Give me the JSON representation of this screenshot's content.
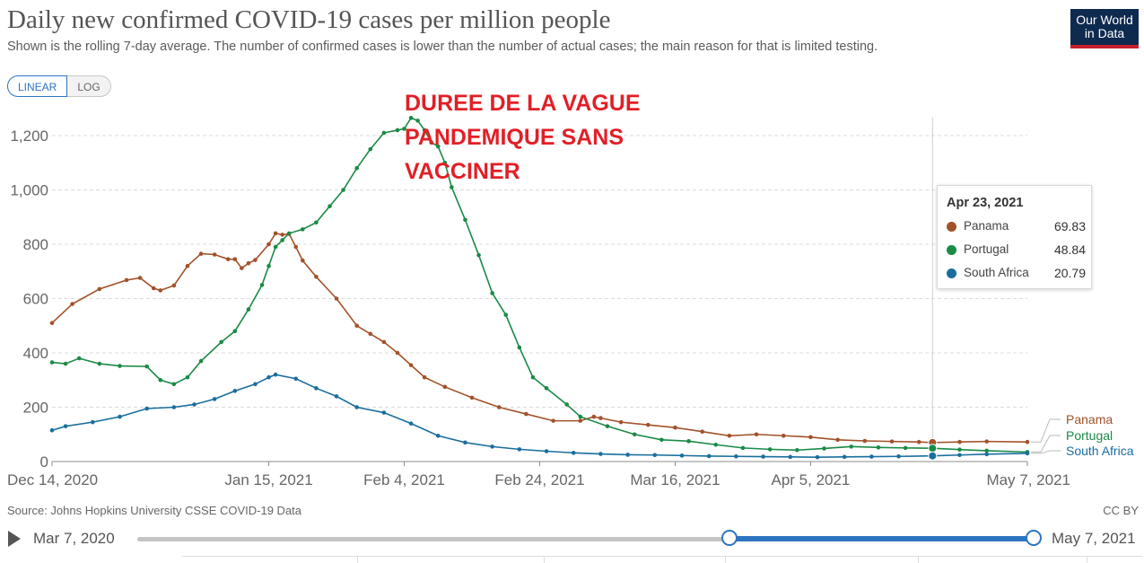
{
  "title": "Daily new confirmed COVID-19 cases per million people",
  "subtitle": "Shown is the rolling 7-day average. The number of confirmed cases is lower than the number of actual cases; the main reason for that is limited testing.",
  "logo": {
    "line1": "Our World",
    "line2": "in Data"
  },
  "scale_toggle": {
    "linear": "LINEAR",
    "log": "LOG",
    "selected": "LINEAR"
  },
  "annotation": {
    "line1": "DUREE DE LA VAGUE",
    "line2": "PANDEMIQUE SANS",
    "line3": "VACCINER",
    "color": "#e21f26"
  },
  "tooltip": {
    "date": "Apr 23, 2021",
    "rows": [
      {
        "name": "Panama",
        "value": "69.83",
        "color": "#a2522a"
      },
      {
        "name": "Portugal",
        "value": "48.84",
        "color": "#1a8a47"
      },
      {
        "name": "South Africa",
        "value": "20.79",
        "color": "#1a6e9e"
      }
    ]
  },
  "footer": {
    "source": "Source: Johns Hopkins University CSSE COVID-19 Data",
    "license": "CC BY"
  },
  "timeline": {
    "start_label": "Mar 7, 2020",
    "end_label": "May 7, 2021"
  },
  "chart_data": {
    "type": "line",
    "title": "Daily new confirmed COVID-19 cases per million people",
    "x_ticks": [
      "Dec 14, 2020",
      "Jan 15, 2021",
      "Feb 4, 2021",
      "Feb 24, 2021",
      "Mar 16, 2021",
      "Apr 5, 2021",
      "May 7, 2021"
    ],
    "y_ticks": [
      "0",
      "200",
      "400",
      "600",
      "800",
      "1,000",
      "1,200"
    ],
    "ylim": [
      0,
      1270
    ],
    "grid": "horizontal dashed",
    "series": [
      {
        "name": "Panama",
        "color": "#a2522a",
        "points": [
          [
            "2020-12-14",
            510
          ],
          [
            "2020-12-17",
            580
          ],
          [
            "2020-12-21",
            635
          ],
          [
            "2020-12-25",
            668
          ],
          [
            "2020-12-27",
            676
          ],
          [
            "2020-12-29",
            638
          ],
          [
            "2020-12-30",
            630
          ],
          [
            "2021-01-01",
            648
          ],
          [
            "2021-01-03",
            720
          ],
          [
            "2021-01-05",
            765
          ],
          [
            "2021-01-07",
            762
          ],
          [
            "2021-01-09",
            745
          ],
          [
            "2021-01-10",
            745
          ],
          [
            "2021-01-11",
            712
          ],
          [
            "2021-01-12",
            730
          ],
          [
            "2021-01-13",
            742
          ],
          [
            "2021-01-15",
            800
          ],
          [
            "2021-01-16",
            840
          ],
          [
            "2021-01-17",
            835
          ],
          [
            "2021-01-18",
            838
          ],
          [
            "2021-01-19",
            790
          ],
          [
            "2021-01-20",
            740
          ],
          [
            "2021-01-22",
            680
          ],
          [
            "2021-01-25",
            600
          ],
          [
            "2021-01-28",
            500
          ],
          [
            "2021-01-30",
            470
          ],
          [
            "2021-02-01",
            440
          ],
          [
            "2021-02-03",
            400
          ],
          [
            "2021-02-05",
            355
          ],
          [
            "2021-02-07",
            310
          ],
          [
            "2021-02-10",
            275
          ],
          [
            "2021-02-14",
            235
          ],
          [
            "2021-02-18",
            200
          ],
          [
            "2021-02-22",
            175
          ],
          [
            "2021-02-26",
            150
          ],
          [
            "2021-03-02",
            150
          ],
          [
            "2021-03-04",
            165
          ],
          [
            "2021-03-05",
            160
          ],
          [
            "2021-03-08",
            145
          ],
          [
            "2021-03-12",
            135
          ],
          [
            "2021-03-16",
            125
          ],
          [
            "2021-03-20",
            110
          ],
          [
            "2021-03-24",
            95
          ],
          [
            "2021-03-28",
            100
          ],
          [
            "2021-04-01",
            95
          ],
          [
            "2021-04-05",
            90
          ],
          [
            "2021-04-09",
            80
          ],
          [
            "2021-04-13",
            76
          ],
          [
            "2021-04-17",
            74
          ],
          [
            "2021-04-21",
            72
          ],
          [
            "2021-04-23",
            69.83
          ],
          [
            "2021-04-27",
            72
          ],
          [
            "2021-05-01",
            74
          ],
          [
            "2021-05-07",
            72
          ]
        ]
      },
      {
        "name": "Portugal",
        "color": "#1a8a47",
        "points": [
          [
            "2020-12-14",
            365
          ],
          [
            "2020-12-16",
            360
          ],
          [
            "2020-12-18",
            380
          ],
          [
            "2020-12-21",
            360
          ],
          [
            "2020-12-24",
            352
          ],
          [
            "2020-12-28",
            350
          ],
          [
            "2020-12-30",
            300
          ],
          [
            "2021-01-01",
            285
          ],
          [
            "2021-01-03",
            310
          ],
          [
            "2021-01-05",
            370
          ],
          [
            "2021-01-08",
            440
          ],
          [
            "2021-01-10",
            480
          ],
          [
            "2021-01-12",
            560
          ],
          [
            "2021-01-14",
            650
          ],
          [
            "2021-01-15",
            720
          ],
          [
            "2021-01-16",
            790
          ],
          [
            "2021-01-17",
            815
          ],
          [
            "2021-01-18",
            840
          ],
          [
            "2021-01-20",
            855
          ],
          [
            "2021-01-22",
            880
          ],
          [
            "2021-01-24",
            940
          ],
          [
            "2021-01-26",
            1000
          ],
          [
            "2021-01-28",
            1080
          ],
          [
            "2021-01-30",
            1150
          ],
          [
            "2021-02-01",
            1210
          ],
          [
            "2021-02-03",
            1220
          ],
          [
            "2021-02-04",
            1225
          ],
          [
            "2021-02-05",
            1265
          ],
          [
            "2021-02-06",
            1255
          ],
          [
            "2021-02-07",
            1220
          ],
          [
            "2021-02-08",
            1175
          ],
          [
            "2021-02-09",
            1160
          ],
          [
            "2021-02-10",
            1100
          ],
          [
            "2021-02-11",
            1010
          ],
          [
            "2021-02-13",
            890
          ],
          [
            "2021-02-15",
            760
          ],
          [
            "2021-02-17",
            620
          ],
          [
            "2021-02-19",
            540
          ],
          [
            "2021-02-21",
            420
          ],
          [
            "2021-02-23",
            310
          ],
          [
            "2021-02-25",
            270
          ],
          [
            "2021-02-28",
            210
          ],
          [
            "2021-03-02",
            165
          ],
          [
            "2021-03-06",
            130
          ],
          [
            "2021-03-10",
            100
          ],
          [
            "2021-03-14",
            80
          ],
          [
            "2021-03-18",
            75
          ],
          [
            "2021-03-22",
            62
          ],
          [
            "2021-03-26",
            50
          ],
          [
            "2021-03-30",
            45
          ],
          [
            "2021-04-03",
            42
          ],
          [
            "2021-04-07",
            48
          ],
          [
            "2021-04-11",
            55
          ],
          [
            "2021-04-15",
            52
          ],
          [
            "2021-04-19",
            50
          ],
          [
            "2021-04-23",
            48.84
          ],
          [
            "2021-04-27",
            44
          ],
          [
            "2021-05-01",
            40
          ],
          [
            "2021-05-07",
            35
          ]
        ]
      },
      {
        "name": "South Africa",
        "color": "#1a6e9e",
        "points": [
          [
            "2020-12-14",
            115
          ],
          [
            "2020-12-16",
            130
          ],
          [
            "2020-12-20",
            145
          ],
          [
            "2020-12-24",
            165
          ],
          [
            "2020-12-28",
            195
          ],
          [
            "2021-01-01",
            200
          ],
          [
            "2021-01-04",
            210
          ],
          [
            "2021-01-07",
            230
          ],
          [
            "2021-01-10",
            260
          ],
          [
            "2021-01-13",
            285
          ],
          [
            "2021-01-15",
            310
          ],
          [
            "2021-01-16",
            320
          ],
          [
            "2021-01-19",
            305
          ],
          [
            "2021-01-22",
            270
          ],
          [
            "2021-01-25",
            240
          ],
          [
            "2021-01-28",
            200
          ],
          [
            "2021-02-01",
            180
          ],
          [
            "2021-02-05",
            140
          ],
          [
            "2021-02-09",
            95
          ],
          [
            "2021-02-13",
            70
          ],
          [
            "2021-02-17",
            55
          ],
          [
            "2021-02-21",
            45
          ],
          [
            "2021-02-25",
            38
          ],
          [
            "2021-03-01",
            32
          ],
          [
            "2021-03-05",
            28
          ],
          [
            "2021-03-09",
            25
          ],
          [
            "2021-03-13",
            24
          ],
          [
            "2021-03-17",
            22
          ],
          [
            "2021-03-21",
            20
          ],
          [
            "2021-03-25",
            19
          ],
          [
            "2021-03-29",
            18
          ],
          [
            "2021-04-02",
            17
          ],
          [
            "2021-04-06",
            16
          ],
          [
            "2021-04-10",
            17
          ],
          [
            "2021-04-14",
            18
          ],
          [
            "2021-04-18",
            19
          ],
          [
            "2021-04-23",
            20.79
          ],
          [
            "2021-04-27",
            24
          ],
          [
            "2021-05-01",
            27
          ],
          [
            "2021-05-07",
            30
          ]
        ]
      }
    ],
    "end_labels": [
      "Panama",
      "Portugal",
      "South Africa"
    ],
    "hover_date": "2021-04-23"
  }
}
